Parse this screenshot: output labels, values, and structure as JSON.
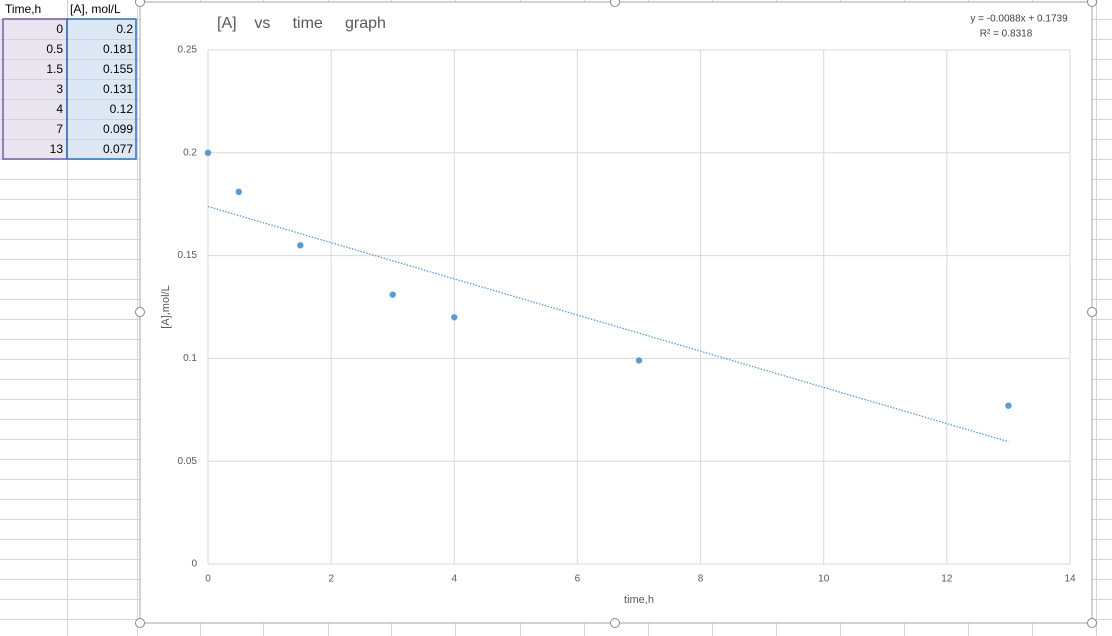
{
  "table": {
    "header": [
      "Time,h",
      "[A], mol/L"
    ],
    "rows": [
      [
        "0",
        "0.2"
      ],
      [
        "0.5",
        "0.181"
      ],
      [
        "1.5",
        "0.155"
      ],
      [
        "3",
        "0.131"
      ],
      [
        "4",
        "0.12"
      ],
      [
        "7",
        "0.099"
      ],
      [
        "13",
        "0.077"
      ]
    ]
  },
  "chart_data": {
    "type": "scatter",
    "title": "[A]    vs     time     graph",
    "x_label": "time,h",
    "y_label": "[A],mol/L",
    "x": [
      0,
      0.5,
      1.5,
      3,
      4,
      7,
      13
    ],
    "values": [
      0.2,
      0.181,
      0.155,
      0.131,
      0.12,
      0.099,
      0.077
    ],
    "color": "#5b9bd5",
    "xlim": [
      0,
      14
    ],
    "xticks": [
      0,
      2,
      4,
      6,
      8,
      10,
      12,
      14
    ],
    "ylim": [
      0,
      0.25
    ],
    "yticks": [
      0,
      0.05,
      0.1,
      0.15,
      0.2,
      0.25
    ],
    "grid": true,
    "trendline": {
      "equation": "y = -0.0088x + 0.1739",
      "r_squared": "R² = 0.8318",
      "x": [
        0,
        13
      ],
      "values": [
        0.1739,
        0.0595
      ]
    }
  }
}
